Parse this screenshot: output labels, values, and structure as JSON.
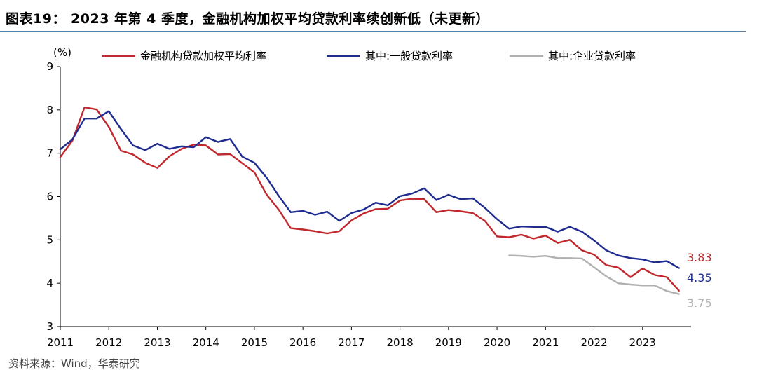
{
  "page": {
    "title": "图表19：  2023 年第 4 季度，金融机构加权平均贷款利率续创新低（未更新）",
    "source": "资料来源：Wind，华泰研究"
  },
  "chart_data": {
    "type": "line",
    "ylabel": "(%)",
    "ylim": [
      3,
      9
    ],
    "yticks": [
      "3",
      "4",
      "5",
      "6",
      "7",
      "8",
      "9"
    ],
    "xlim": [
      2011.0,
      2024.0
    ],
    "xticks": [
      "2011",
      "2012",
      "2013",
      "2014",
      "2015",
      "2016",
      "2017",
      "2018",
      "2019",
      "2020",
      "2021",
      "2022",
      "2023"
    ],
    "grid": false,
    "legend_position": "top",
    "series": [
      {
        "name": "金融机构贷款加权平均利率",
        "color": "#c0282d",
        "end_label": "3.83",
        "x": [
          2011.0,
          2011.25,
          2011.5,
          2011.75,
          2012.0,
          2012.25,
          2012.5,
          2012.75,
          2013.0,
          2013.25,
          2013.5,
          2013.75,
          2014.0,
          2014.25,
          2014.5,
          2014.75,
          2015.0,
          2015.25,
          2015.5,
          2015.75,
          2016.0,
          2016.25,
          2016.5,
          2016.75,
          2017.0,
          2017.25,
          2017.5,
          2017.75,
          2018.0,
          2018.25,
          2018.5,
          2018.75,
          2019.0,
          2019.25,
          2019.5,
          2019.75,
          2020.0,
          2020.25,
          2020.5,
          2020.75,
          2021.0,
          2021.25,
          2021.5,
          2021.75,
          2022.0,
          2022.25,
          2022.5,
          2022.75,
          2023.0,
          2023.25,
          2023.5,
          2023.75
        ],
        "y": [
          6.91,
          7.29,
          8.06,
          8.01,
          7.61,
          7.06,
          6.97,
          6.78,
          6.66,
          6.93,
          7.1,
          7.2,
          7.18,
          6.97,
          6.98,
          6.77,
          6.56,
          6.05,
          5.7,
          5.27,
          5.24,
          5.2,
          5.15,
          5.2,
          5.45,
          5.61,
          5.71,
          5.72,
          5.91,
          5.95,
          5.94,
          5.64,
          5.69,
          5.66,
          5.62,
          5.44,
          5.08,
          5.06,
          5.12,
          5.03,
          5.1,
          4.93,
          5.0,
          4.76,
          4.66,
          4.42,
          4.36,
          4.14,
          4.34,
          4.19,
          4.14,
          3.83
        ]
      },
      {
        "name": "其中:一般贷款利率",
        "color": "#1f2c8f",
        "end_label": "4.35",
        "x": [
          2011.0,
          2011.25,
          2011.5,
          2011.75,
          2012.0,
          2012.25,
          2012.5,
          2012.75,
          2013.0,
          2013.25,
          2013.5,
          2013.75,
          2014.0,
          2014.25,
          2014.5,
          2014.75,
          2015.0,
          2015.25,
          2015.5,
          2015.75,
          2016.0,
          2016.25,
          2016.5,
          2016.75,
          2017.0,
          2017.25,
          2017.5,
          2017.75,
          2018.0,
          2018.25,
          2018.5,
          2018.75,
          2019.0,
          2019.25,
          2019.5,
          2019.75,
          2020.0,
          2020.25,
          2020.5,
          2020.75,
          2021.0,
          2021.25,
          2021.5,
          2021.75,
          2022.0,
          2022.25,
          2022.5,
          2022.75,
          2023.0,
          2023.25,
          2023.5,
          2023.75
        ],
        "y": [
          7.09,
          7.32,
          7.8,
          7.8,
          7.97,
          7.56,
          7.18,
          7.07,
          7.22,
          7.1,
          7.16,
          7.14,
          7.37,
          7.26,
          7.33,
          6.92,
          6.78,
          6.44,
          6.02,
          5.64,
          5.67,
          5.58,
          5.65,
          5.44,
          5.62,
          5.7,
          5.86,
          5.8,
          6.01,
          6.07,
          6.19,
          5.92,
          6.04,
          5.94,
          5.96,
          5.74,
          5.48,
          5.26,
          5.31,
          5.3,
          5.3,
          5.19,
          5.3,
          5.19,
          4.99,
          4.76,
          4.64,
          4.58,
          4.55,
          4.48,
          4.51,
          4.35
        ]
      },
      {
        "name": "其中:企业贷款利率",
        "color": "#b0b0b0",
        "end_label": "3.75",
        "x": [
          2020.25,
          2020.5,
          2020.75,
          2021.0,
          2021.25,
          2021.5,
          2021.75,
          2022.0,
          2022.25,
          2022.5,
          2022.75,
          2023.0,
          2023.25,
          2023.5,
          2023.75
        ],
        "y": [
          4.64,
          4.63,
          4.61,
          4.63,
          4.58,
          4.58,
          4.57,
          4.37,
          4.16,
          4.0,
          3.97,
          3.95,
          3.95,
          3.82,
          3.75
        ]
      }
    ]
  }
}
